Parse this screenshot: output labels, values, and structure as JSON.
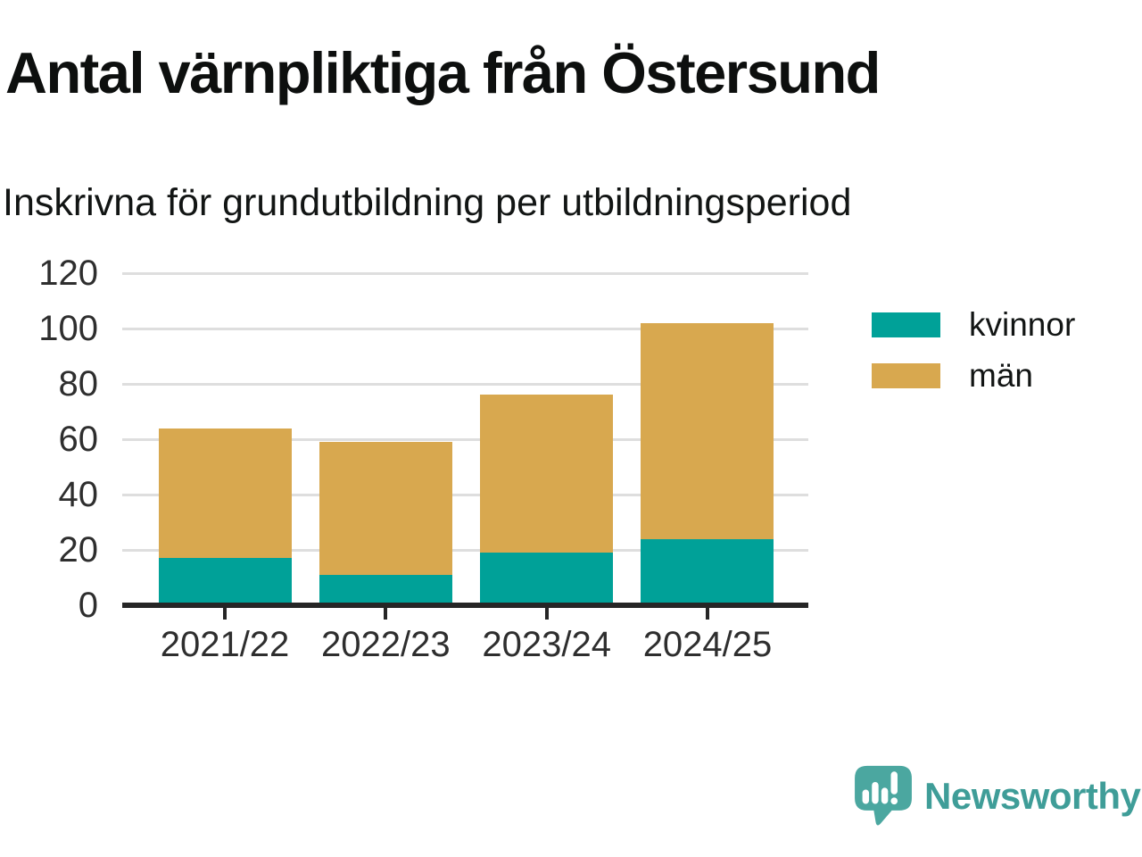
{
  "title": "Antal värnpliktiga från Östersund",
  "subtitle": "Inskrivna för grundutbildning per utbildningsperiod",
  "chart_data": {
    "type": "bar",
    "stacked": true,
    "title": "Antal värnpliktiga från Östersund",
    "subtitle": "Inskrivna för grundutbildning per utbildningsperiod",
    "categories": [
      "2021/22",
      "2022/23",
      "2023/24",
      "2024/25"
    ],
    "series": [
      {
        "name": "kvinnor",
        "color": "#00A198",
        "values": [
          17,
          11,
          19,
          24
        ]
      },
      {
        "name": "män",
        "color": "#D8A84F",
        "values": [
          47,
          48,
          57,
          78
        ]
      }
    ],
    "totals": [
      64,
      59,
      76,
      102
    ],
    "xlabel": "",
    "ylabel": "",
    "ylim": [
      0,
      120
    ],
    "yticks": [
      0,
      20,
      40,
      60,
      80,
      100,
      120
    ],
    "grid": true,
    "legend_position": "right-top"
  },
  "footer": {
    "brand": "Newsworthy"
  },
  "colors": {
    "kvinnor": "#00A198",
    "man": "#D8A84F",
    "grid": "#DEDEDE",
    "axis": "#262626",
    "heading_text": "#0D0F0E",
    "tick_label_text": "#2E2E2E",
    "brand_teal": "#3F9D98",
    "logo_bubble": "#4BA7A0"
  }
}
